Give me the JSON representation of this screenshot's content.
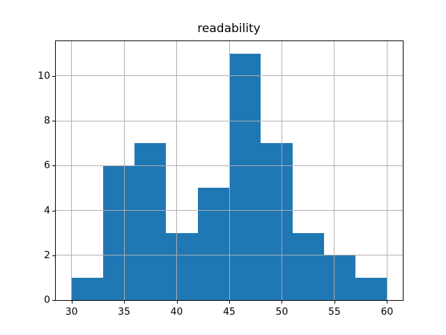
{
  "chart_data": {
    "type": "bar",
    "subtype": "histogram",
    "title": "readability",
    "xlabel": "",
    "ylabel": "",
    "bin_edges": [
      30,
      33,
      36,
      39,
      42,
      45,
      48,
      51,
      54,
      57,
      60
    ],
    "counts": [
      1,
      6,
      7,
      3,
      5,
      11,
      7,
      3,
      2,
      1
    ],
    "x_ticks": [
      30,
      35,
      40,
      45,
      50,
      55,
      60
    ],
    "y_ticks": [
      0,
      2,
      4,
      6,
      8,
      10
    ],
    "xlim": [
      28.5,
      61.5
    ],
    "ylim": [
      0,
      11.55
    ],
    "grid": true,
    "legend": false,
    "colors": {
      "bar": "#1f77b4",
      "grid": "#b0b0b0",
      "spine": "#000000",
      "background": "#ffffff",
      "text": "#000000"
    }
  }
}
